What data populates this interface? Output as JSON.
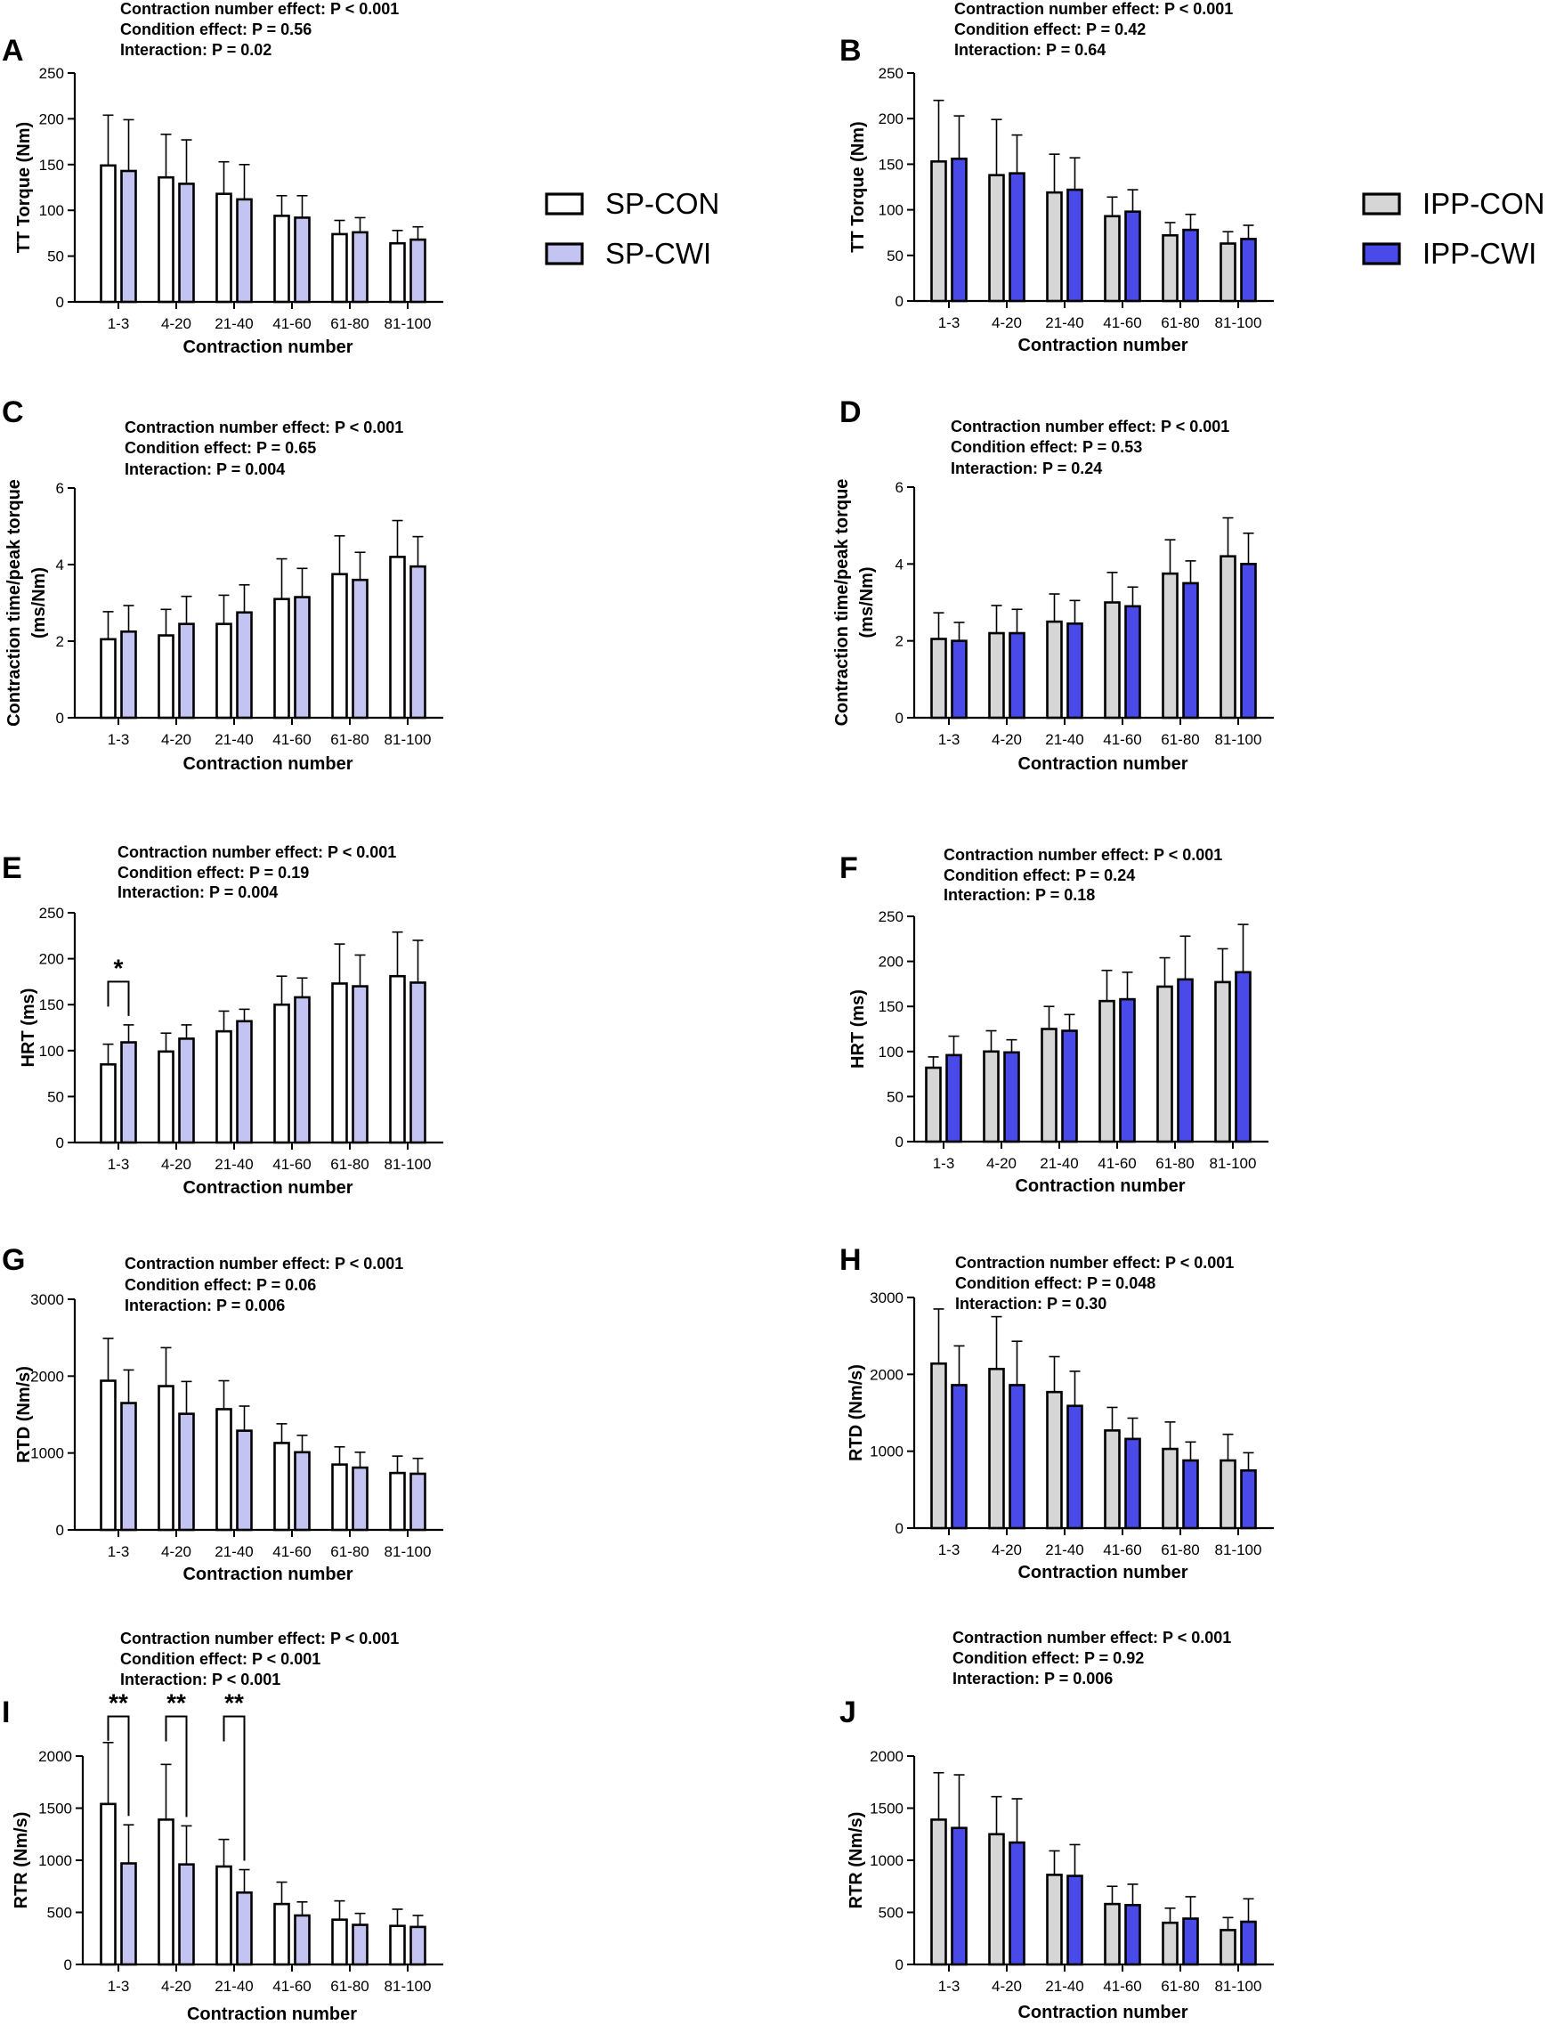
{
  "colors": {
    "sp_con": "#ffffff",
    "sp_cwi": "#c4c4f2",
    "ipp_con": "#d6d6d6",
    "ipp_cwi": "#4a4ae8",
    "stroke": "#000000"
  },
  "legend_left": [
    {
      "label": "SP-CON",
      "key": "sp_con"
    },
    {
      "label": "SP-CWI",
      "key": "sp_cwi"
    }
  ],
  "legend_right": [
    {
      "label": "IPP-CON",
      "key": "ipp_con"
    },
    {
      "label": "IPP-CWI",
      "key": "ipp_cwi"
    }
  ],
  "chart_data": [
    {
      "panel": "A",
      "type": "bar",
      "title": "",
      "annotations": [
        "Contraction number effect: P < 0.001",
        "Condition effect: P = 0.56",
        "Interaction: P = 0.02"
      ],
      "xlabel": "Contraction number",
      "ylabel": "TT Torque (Nm)",
      "ylim": [
        0,
        250
      ],
      "yticks": [
        0,
        50,
        100,
        150,
        200,
        250
      ],
      "categories": [
        "1-3",
        "4-20",
        "21-40",
        "41-60",
        "61-80",
        "81-100"
      ],
      "series": [
        {
          "name": "SP-CON",
          "color_key": "sp_con",
          "values": [
            149,
            136,
            118,
            94,
            74,
            64
          ],
          "errors": [
            55,
            47,
            35,
            22,
            15,
            14
          ]
        },
        {
          "name": "SP-CWI",
          "color_key": "sp_cwi",
          "values": [
            143,
            129,
            112,
            92,
            76,
            68
          ],
          "errors": [
            56,
            48,
            38,
            24,
            16,
            14
          ]
        }
      ],
      "significance": []
    },
    {
      "panel": "B",
      "type": "bar",
      "title": "",
      "annotations": [
        "Contraction number effect: P < 0.001",
        "Condition effect: P = 0.42",
        "Interaction: P = 0.64"
      ],
      "xlabel": "Contraction number",
      "ylabel": "TT Torque (Nm)",
      "ylim": [
        0,
        250
      ],
      "yticks": [
        0,
        50,
        100,
        150,
        200,
        250
      ],
      "categories": [
        "1-3",
        "4-20",
        "21-40",
        "41-60",
        "61-80",
        "81-100"
      ],
      "series": [
        {
          "name": "IPP-CON",
          "color_key": "ipp_con",
          "values": [
            153,
            138,
            119,
            93,
            72,
            63
          ],
          "errors": [
            67,
            61,
            42,
            21,
            14,
            13
          ]
        },
        {
          "name": "IPP-CWI",
          "color_key": "ipp_cwi",
          "values": [
            156,
            140,
            122,
            98,
            78,
            68
          ],
          "errors": [
            47,
            42,
            35,
            24,
            17,
            15
          ]
        }
      ],
      "significance": []
    },
    {
      "panel": "C",
      "type": "bar",
      "title": "",
      "annotations": [
        "Contraction number effect: P < 0.001",
        "Condition effect: P = 0.65",
        "Interaction: P = 0.004"
      ],
      "xlabel": "Contraction number",
      "ylabel": "Contraction time/peak torque (ms/Nm)",
      "ylim": [
        0,
        6
      ],
      "yticks": [
        0,
        2,
        4,
        6
      ],
      "categories": [
        "1-3",
        "4-20",
        "21-40",
        "41-60",
        "61-80",
        "81-100"
      ],
      "series": [
        {
          "name": "SP-CON",
          "color_key": "sp_con",
          "values": [
            2.05,
            2.15,
            2.45,
            3.1,
            3.75,
            4.2
          ],
          "errors": [
            0.72,
            0.68,
            0.75,
            1.05,
            1.0,
            0.95
          ]
        },
        {
          "name": "SP-CWI",
          "color_key": "sp_cwi",
          "values": [
            2.25,
            2.45,
            2.75,
            3.15,
            3.6,
            3.95
          ],
          "errors": [
            0.68,
            0.72,
            0.72,
            0.75,
            0.72,
            0.78
          ]
        }
      ],
      "significance": []
    },
    {
      "panel": "D",
      "type": "bar",
      "title": "",
      "annotations": [
        "Contraction number effect: P < 0.001",
        "Condition effect: P = 0.53",
        "Interaction: P = 0.24"
      ],
      "xlabel": "Contraction number",
      "ylabel": "Contraction time/peak torque (ms/Nm)",
      "ylim": [
        0,
        6
      ],
      "yticks": [
        0,
        2,
        4,
        6
      ],
      "categories": [
        "1-3",
        "4-20",
        "21-40",
        "41-60",
        "61-80",
        "81-100"
      ],
      "series": [
        {
          "name": "IPP-CON",
          "color_key": "ipp_con",
          "values": [
            2.05,
            2.2,
            2.5,
            3.0,
            3.75,
            4.2
          ],
          "errors": [
            0.68,
            0.72,
            0.72,
            0.78,
            0.88,
            1.0
          ]
        },
        {
          "name": "IPP-CWI",
          "color_key": "ipp_cwi",
          "values": [
            2.0,
            2.2,
            2.45,
            2.9,
            3.5,
            4.0
          ],
          "errors": [
            0.48,
            0.62,
            0.6,
            0.5,
            0.58,
            0.8
          ]
        }
      ],
      "significance": []
    },
    {
      "panel": "E",
      "type": "bar",
      "title": "",
      "annotations": [
        "Contraction number effect: P < 0.001",
        "Condition effect: P = 0.19",
        "Interaction: P = 0.004"
      ],
      "xlabel": "Contraction number",
      "ylabel": "HRT (ms)",
      "ylim": [
        0,
        250
      ],
      "yticks": [
        0,
        50,
        100,
        150,
        200,
        250
      ],
      "categories": [
        "1-3",
        "4-20",
        "21-40",
        "41-60",
        "61-80",
        "81-100"
      ],
      "series": [
        {
          "name": "SP-CON",
          "color_key": "sp_con",
          "values": [
            85,
            99,
            121,
            150,
            173,
            181
          ],
          "errors": [
            22,
            20,
            22,
            31,
            43,
            48
          ]
        },
        {
          "name": "SP-CWI",
          "color_key": "sp_cwi",
          "values": [
            109,
            113,
            132,
            158,
            170,
            174
          ],
          "errors": [
            19,
            15,
            13,
            21,
            34,
            46
          ]
        }
      ],
      "significance": [
        {
          "category_index": 0,
          "label": "*",
          "top": 175
        }
      ]
    },
    {
      "panel": "F",
      "type": "bar",
      "title": "",
      "annotations": [
        "Contraction number effect: P < 0.001",
        "Condition effect: P = 0.24",
        "Interaction: P = 0.18"
      ],
      "xlabel": "Contraction number",
      "ylabel": "HRT (ms)",
      "ylim": [
        0,
        250
      ],
      "yticks": [
        0,
        50,
        100,
        150,
        200,
        250
      ],
      "categories": [
        "1-3",
        "4-20",
        "21-40",
        "41-60",
        "61-80",
        "81-100"
      ],
      "series": [
        {
          "name": "IPP-CON",
          "color_key": "ipp_con",
          "values": [
            82,
            100,
            125,
            156,
            172,
            177
          ],
          "errors": [
            12,
            23,
            25,
            34,
            32,
            37
          ]
        },
        {
          "name": "IPP-CWI",
          "color_key": "ipp_cwi",
          "values": [
            96,
            99,
            123,
            158,
            180,
            188
          ],
          "errors": [
            21,
            14,
            18,
            30,
            48,
            53
          ]
        }
      ],
      "significance": []
    },
    {
      "panel": "G",
      "type": "bar",
      "title": "",
      "annotations": [
        "Contraction number effect: P < 0.001",
        "Condition effect: P = 0.06",
        "Interaction: P = 0.006"
      ],
      "xlabel": "Contraction number",
      "ylabel": "RTD (Nm/s)",
      "ylim": [
        0,
        3000
      ],
      "yticks": [
        0,
        1000,
        2000,
        3000
      ],
      "categories": [
        "1-3",
        "4-20",
        "21-40",
        "41-60",
        "61-80",
        "81-100"
      ],
      "series": [
        {
          "name": "SP-CON",
          "color_key": "sp_con",
          "values": [
            1940,
            1870,
            1570,
            1130,
            850,
            740
          ],
          "errors": [
            550,
            500,
            370,
            250,
            230,
            220
          ]
        },
        {
          "name": "SP-CWI",
          "color_key": "sp_cwi",
          "values": [
            1650,
            1510,
            1290,
            1010,
            810,
            730
          ],
          "errors": [
            430,
            420,
            320,
            220,
            200,
            200
          ]
        }
      ],
      "significance": []
    },
    {
      "panel": "H",
      "type": "bar",
      "title": "",
      "annotations": [
        "Contraction number effect: P < 0.001",
        "Condition effect: P = 0.048",
        "Interaction: P = 0.30"
      ],
      "xlabel": "Contraction number",
      "ylabel": "RTD (Nm/s)",
      "ylim": [
        0,
        3000
      ],
      "yticks": [
        0,
        1000,
        2000,
        3000
      ],
      "categories": [
        "1-3",
        "4-20",
        "21-40",
        "41-60",
        "61-80",
        "81-100"
      ],
      "series": [
        {
          "name": "IPP-CON",
          "color_key": "ipp_con",
          "values": [
            2140,
            2070,
            1770,
            1270,
            1030,
            880
          ],
          "errors": [
            710,
            680,
            460,
            300,
            350,
            340
          ]
        },
        {
          "name": "IPP-CWI",
          "color_key": "ipp_cwi",
          "values": [
            1860,
            1860,
            1590,
            1160,
            880,
            750
          ],
          "errors": [
            510,
            570,
            450,
            270,
            240,
            230
          ]
        }
      ],
      "significance": []
    },
    {
      "panel": "I",
      "type": "bar",
      "title": "",
      "annotations": [
        "Contraction number effect: P < 0.001",
        "Condition effect: P < 0.001",
        "Interaction: P < 0.001"
      ],
      "xlabel": "Contraction number",
      "ylabel": "RTR (Nm/s)",
      "ylim": [
        0,
        2000
      ],
      "yticks": [
        0,
        500,
        1000,
        1500,
        2000
      ],
      "categories": [
        "1-3",
        "4-20",
        "21-40",
        "41-60",
        "61-80",
        "81-100"
      ],
      "series": [
        {
          "name": "SP-CON",
          "color_key": "sp_con",
          "values": [
            1540,
            1390,
            940,
            580,
            430,
            370
          ],
          "errors": [
            590,
            530,
            260,
            210,
            180,
            160
          ]
        },
        {
          "name": "SP-CWI",
          "color_key": "sp_cwi",
          "values": [
            970,
            960,
            690,
            470,
            380,
            360
          ],
          "errors": [
            370,
            370,
            220,
            130,
            110,
            110
          ]
        }
      ],
      "significance": [
        {
          "category_index": 0,
          "label": "**",
          "top": 2380
        },
        {
          "category_index": 1,
          "label": "**",
          "top": 2380
        },
        {
          "category_index": 2,
          "label": "**",
          "top": 2380
        }
      ]
    },
    {
      "panel": "J",
      "type": "bar",
      "title": "",
      "annotations": [
        "Contraction number effect: P < 0.001",
        "Condition effect: P = 0.92",
        "Interaction: P = 0.006"
      ],
      "xlabel": "Contraction number",
      "ylabel": "RTR (Nm/s)",
      "ylim": [
        0,
        2000
      ],
      "yticks": [
        0,
        500,
        1000,
        1500,
        2000
      ],
      "categories": [
        "1-3",
        "4-20",
        "21-40",
        "41-60",
        "61-80",
        "81-100"
      ],
      "series": [
        {
          "name": "IPP-CON",
          "color_key": "ipp_con",
          "values": [
            1390,
            1250,
            860,
            580,
            400,
            330
          ],
          "errors": [
            450,
            360,
            230,
            170,
            140,
            120
          ]
        },
        {
          "name": "IPP-CWI",
          "color_key": "ipp_cwi",
          "values": [
            1310,
            1170,
            850,
            570,
            440,
            410
          ],
          "errors": [
            510,
            420,
            300,
            200,
            210,
            220
          ]
        }
      ],
      "significance": []
    }
  ]
}
